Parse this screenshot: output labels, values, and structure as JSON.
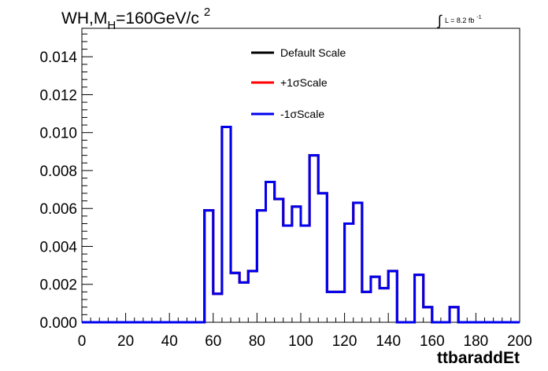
{
  "chart_data": {
    "type": "line",
    "title": {
      "prefix": "WH,M",
      "subscript": "H",
      "suffix": "=160GeV/c",
      "superscript": "2"
    },
    "luminosity": {
      "integral": "∫",
      "label": "L = 8.2 fb",
      "superscript": "-1"
    },
    "xlabel": "ttbaraddEt",
    "ylabel": "",
    "xlim": [
      0,
      200
    ],
    "ylim": [
      0,
      0.0155
    ],
    "x_ticks": [
      {
        "value": 0,
        "label": "0"
      },
      {
        "value": 20,
        "label": "20"
      },
      {
        "value": 40,
        "label": "40"
      },
      {
        "value": 60,
        "label": "60"
      },
      {
        "value": 80,
        "label": "80"
      },
      {
        "value": 100,
        "label": "100"
      },
      {
        "value": 120,
        "label": "120"
      },
      {
        "value": 140,
        "label": "140"
      },
      {
        "value": 160,
        "label": "160"
      },
      {
        "value": 180,
        "label": "180"
      },
      {
        "value": 200,
        "label": "200"
      }
    ],
    "y_ticks": [
      {
        "value": 0,
        "label": "0.000"
      },
      {
        "value": 0.002,
        "label": "0.002"
      },
      {
        "value": 0.004,
        "label": "0.004"
      },
      {
        "value": 0.006,
        "label": "0.006"
      },
      {
        "value": 0.008,
        "label": "0.008"
      },
      {
        "value": 0.01,
        "label": "0.010"
      },
      {
        "value": 0.012,
        "label": "0.012"
      },
      {
        "value": 0.014,
        "label": "0.014"
      }
    ],
    "bin_edges": [
      0,
      4,
      8,
      12,
      16,
      20,
      24,
      28,
      32,
      36,
      40,
      44,
      48,
      52,
      56,
      60,
      64,
      68,
      72,
      76,
      80,
      84,
      88,
      92,
      96,
      100,
      104,
      108,
      112,
      116,
      120,
      124,
      128,
      132,
      136,
      140,
      144,
      148,
      152,
      156,
      160,
      164,
      168,
      172,
      176,
      180,
      184,
      188,
      192,
      196,
      200
    ],
    "series": [
      {
        "name": "Default Scale",
        "color": "#000000",
        "values": [
          0,
          0,
          0,
          0,
          0,
          0,
          0,
          0,
          0,
          0,
          0,
          0,
          0,
          0,
          0.0059,
          0.0015,
          0.0103,
          0.0026,
          0.0021,
          0.0027,
          0.0059,
          0.0074,
          0.0065,
          0.0051,
          0.0061,
          0.0051,
          0.0088,
          0.0068,
          0.0016,
          0.0016,
          0.0052,
          0.0063,
          0.0016,
          0.0024,
          0.0018,
          0.0027,
          0,
          0,
          0.0025,
          0.0008,
          0,
          0,
          0.0008,
          0,
          0,
          0,
          0,
          0,
          0,
          0
        ]
      },
      {
        "name": "+1σScale",
        "color": "#ff0000",
        "values": [
          0,
          0,
          0,
          0,
          0,
          0,
          0,
          0,
          0,
          0,
          0,
          0,
          0,
          0,
          0.0059,
          0.0015,
          0.0103,
          0.0026,
          0.0021,
          0.0027,
          0.0059,
          0.0074,
          0.0065,
          0.0051,
          0.0061,
          0.0051,
          0.0088,
          0.0068,
          0.0016,
          0.0016,
          0.0052,
          0.0063,
          0.0016,
          0.0024,
          0.0018,
          0.0027,
          0,
          0,
          0.0025,
          0.0008,
          0,
          0,
          0.0008,
          0,
          0,
          0,
          0,
          0,
          0,
          0
        ]
      },
      {
        "name": "-1σScale",
        "color": "#0000ee",
        "values": [
          0,
          0,
          0,
          0,
          0,
          0,
          0,
          0,
          0,
          0,
          0,
          0,
          0,
          0,
          0.0059,
          0.0015,
          0.0103,
          0.0026,
          0.0021,
          0.0027,
          0.0059,
          0.0074,
          0.0065,
          0.0051,
          0.0061,
          0.0051,
          0.0088,
          0.0068,
          0.0016,
          0.0016,
          0.0052,
          0.0063,
          0.0016,
          0.0024,
          0.0018,
          0.0027,
          0,
          0,
          0.0025,
          0.0008,
          0,
          0,
          0.0008,
          0,
          0,
          0,
          0,
          0,
          0,
          0
        ]
      }
    ],
    "legend_position": "top-center",
    "grid": false
  }
}
